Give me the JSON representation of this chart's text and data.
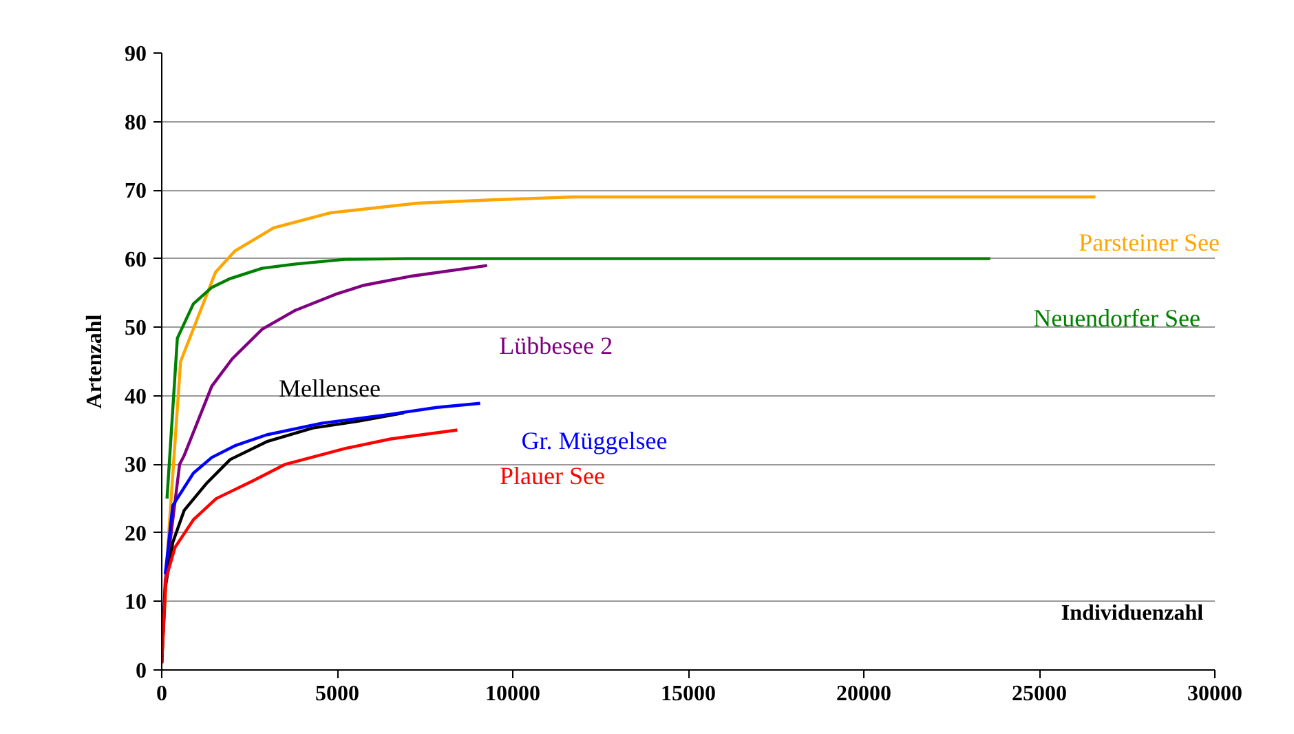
{
  "chart_data": {
    "type": "line",
    "xlabel": "Individuenzahl",
    "ylabel": "Artenzahl",
    "xlim": [
      0,
      30000
    ],
    "ylim": [
      0,
      90
    ],
    "xticks": [
      0,
      5000,
      10000,
      15000,
      20000,
      25000,
      30000
    ],
    "yticks": [
      0,
      10,
      20,
      30,
      40,
      50,
      60,
      70,
      80,
      90
    ],
    "grid": "y",
    "marker": "none",
    "line_style": "solid",
    "series": [
      {
        "name": "Parsteiner See",
        "color": "#ffa500",
        "x": [
          0,
          200,
          537,
          1530,
          2080,
          3190,
          4820,
          7300,
          9530,
          11750,
          26600
        ],
        "values": [
          1,
          20,
          45,
          58,
          61.1,
          64.5,
          66.7,
          68.1,
          68.6,
          69,
          69
        ]
      },
      {
        "name": "Neuendorfer See",
        "color": "#008000",
        "x": [
          150,
          445,
          900,
          1425,
          1950,
          2860,
          3780,
          5220,
          6980,
          23600
        ],
        "values": [
          25,
          48.4,
          53.4,
          55.8,
          57.1,
          58.6,
          59.2,
          59.9,
          60,
          60
        ]
      },
      {
        "name": "Lübbesee 2",
        "color": "#800080",
        "x": [
          0,
          100,
          510,
          640,
          1425,
          2010,
          2860,
          3780,
          4950,
          5740,
          7050,
          9270
        ],
        "values": [
          1,
          13,
          30,
          31.3,
          41.4,
          45.4,
          49.7,
          52.4,
          54.8,
          56.1,
          57.4,
          59
        ]
      },
      {
        "name": "Mellensee",
        "color": "#000000",
        "x": [
          0,
          100,
          314,
          640,
          1290,
          1950,
          2990,
          4300,
          5610,
          6900
        ],
        "values": [
          1,
          12,
          18.6,
          23.3,
          27.3,
          30.7,
          33.3,
          35.3,
          36.3,
          37.5
        ]
      },
      {
        "name": "Gr. Müggelsee",
        "color": "#0000ff",
        "x": [
          100,
          314,
          900,
          1425,
          2080,
          2990,
          4560,
          6520,
          7830,
          9070
        ],
        "values": [
          14,
          24,
          28.7,
          31,
          32.7,
          34.3,
          36,
          37.3,
          38.3,
          38.9
        ]
      },
      {
        "name": "Plauer See",
        "color": "#ff0000",
        "x": [
          0,
          118,
          380,
          900,
          1550,
          2600,
          3520,
          5220,
          6520,
          8420
        ],
        "values": [
          1,
          13.3,
          17.9,
          21.9,
          25,
          27.6,
          30,
          32.3,
          33.7,
          35
        ]
      }
    ]
  }
}
